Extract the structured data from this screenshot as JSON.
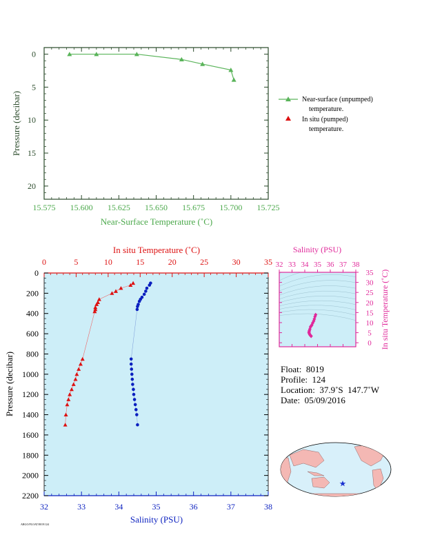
{
  "chart_data": [
    {
      "id": "near_surface",
      "type": "line",
      "xlabel": "Near-Surface Temperature (˚C)",
      "ylabel": "Pressure (decibar)",
      "xlim": [
        15.575,
        15.725
      ],
      "ylim": [
        22,
        -1
      ],
      "xticks": [
        "15.575",
        "15.600",
        "15.625",
        "15.650",
        "15.675",
        "15.700",
        "15.725"
      ],
      "yticks": [
        "0",
        "5",
        "10",
        "15",
        "20"
      ],
      "legend": [
        "Near-surface (unpumped) temperature.",
        "In situ (pumped) temperature."
      ],
      "legend_position": "right",
      "series": [
        {
          "name": "Near-surface (unpumped) temperature.",
          "color": "#5ab45a",
          "marker": "triangle",
          "x": [
            15.592,
            15.61,
            15.637,
            15.667,
            15.681,
            15.7,
            15.702
          ],
          "y": [
            0.0,
            0.0,
            0.0,
            0.8,
            1.5,
            2.4,
            3.9
          ]
        }
      ]
    },
    {
      "id": "profile",
      "type": "scatter",
      "xlabel": "Salinity (PSU)",
      "x2label": "In situ Temperature (˚C)",
      "ylabel": "Pressure (decibar)",
      "xlim": [
        32,
        38
      ],
      "x2lim": [
        0,
        35
      ],
      "ylim": [
        2200,
        0
      ],
      "xticks": [
        "32",
        "33",
        "34",
        "35",
        "36",
        "37",
        "38"
      ],
      "x2ticks": [
        "0",
        "5",
        "10",
        "15",
        "20",
        "25",
        "30",
        "35"
      ],
      "yticks": [
        "0",
        "200",
        "400",
        "600",
        "800",
        "1000",
        "1200",
        "1400",
        "1600",
        "1800",
        "2000",
        "2200"
      ],
      "background": "#cdeef8",
      "series": [
        {
          "name": "In situ Temperature (˚C)",
          "color": "#dd1111",
          "marker": "triangle",
          "x": [
            13.9,
            13.5,
            12.0,
            11.2,
            10.6,
            8.6,
            8.4,
            8.2,
            8.0,
            8.0,
            7.9,
            6.0,
            5.7,
            5.4,
            5.1,
            4.9,
            4.6,
            4.3,
            4.0,
            3.8,
            3.6,
            3.4,
            3.3
          ],
          "y": [
            100,
            120,
            150,
            180,
            200,
            260,
            290,
            310,
            340,
            360,
            380,
            850,
            900,
            950,
            1000,
            1050,
            1100,
            1150,
            1200,
            1250,
            1300,
            1400,
            1500
          ]
        },
        {
          "name": "Salinity (PSU)",
          "color": "#0a1fbf",
          "marker": "circle",
          "x": [
            34.85,
            34.82,
            34.75,
            34.72,
            34.68,
            34.62,
            34.58,
            34.55,
            34.52,
            34.5,
            34.49,
            34.33,
            34.33,
            34.34,
            34.35,
            34.36,
            34.37,
            34.39,
            34.4,
            34.42,
            34.44,
            34.46,
            34.48,
            34.5
          ],
          "y": [
            100,
            120,
            150,
            180,
            210,
            240,
            260,
            280,
            310,
            330,
            360,
            850,
            900,
            950,
            1000,
            1050,
            1100,
            1150,
            1200,
            1250,
            1300,
            1350,
            1400,
            1500
          ]
        }
      ]
    },
    {
      "id": "ts_inset",
      "type": "scatter",
      "xlabel": "Salinity (PSU)",
      "ylabel": "In situ Temperature (˚C)",
      "xlim": [
        32,
        38
      ],
      "ylim": [
        -2,
        35
      ],
      "xticks": [
        "32",
        "33",
        "34",
        "35",
        "36",
        "37",
        "38"
      ],
      "yticks": [
        "0",
        "5",
        "10",
        "15",
        "20",
        "25",
        "30",
        "35"
      ],
      "color": "#e0289a",
      "series": [
        {
          "name": "T-S",
          "color": "#e0289a",
          "marker": "diamond",
          "x": [
            34.85,
            34.8,
            34.75,
            34.7,
            34.62,
            34.55,
            34.5,
            34.45,
            34.4,
            34.36,
            34.34,
            34.33,
            34.36,
            34.4,
            34.45,
            34.5
          ],
          "y": [
            13.9,
            13.0,
            11.8,
            10.8,
            9.8,
            8.8,
            8.3,
            7.9,
            6.8,
            6.0,
            5.5,
            5.0,
            4.5,
            4.0,
            3.6,
            3.3
          ]
        }
      ]
    }
  ],
  "info": {
    "float": "Float:  8019",
    "profile": "Profile:  124",
    "location": "Location:  37.9˚S  147.7˚W",
    "date": "Date:  05/09/2016"
  },
  "map": {
    "marker": "star",
    "marker_color": "#1a30d0",
    "land_color": "#f4b8b4",
    "ocean_color": "#d8f0fa"
  },
  "footer": "ARGO/FLOAT/8019/124"
}
